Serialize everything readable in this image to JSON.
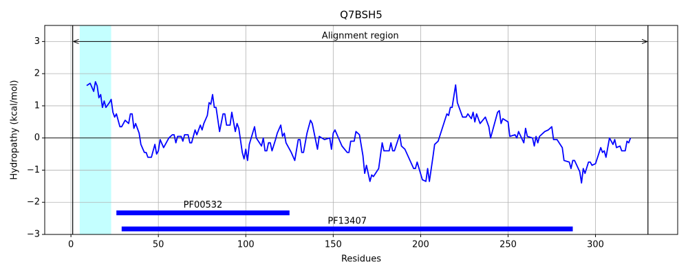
{
  "chart_data": {
    "type": "line",
    "title": "Q7BSH5",
    "x_label": "Residues",
    "y_label": "Hydropathy (kcal/mol)",
    "x": [
      9,
      11,
      13,
      14,
      15,
      16,
      17,
      18,
      19,
      20,
      22,
      23,
      24,
      25,
      26,
      28,
      29,
      31,
      33,
      34,
      35,
      36,
      37,
      39,
      40,
      42,
      43,
      44,
      46,
      48,
      49,
      50,
      51,
      53,
      56,
      58,
      59,
      60,
      61,
      63,
      64,
      65,
      67,
      68,
      69,
      71,
      72,
      74,
      75,
      76,
      78,
      79,
      80,
      81,
      82,
      83,
      85,
      87,
      88,
      89,
      91,
      92,
      94,
      95,
      96,
      98,
      99,
      100,
      101,
      102,
      105,
      106,
      109,
      110,
      111,
      112,
      113,
      114,
      115,
      117,
      118,
      120,
      121,
      122,
      123,
      126,
      128,
      130,
      131,
      132,
      133,
      135,
      137,
      138,
      141,
      142,
      145,
      148,
      149,
      150,
      151,
      153,
      155,
      158,
      159,
      160,
      162,
      163,
      165,
      167,
      168,
      169,
      171,
      172,
      173,
      176,
      178,
      179,
      182,
      183,
      184,
      185,
      188,
      189,
      191,
      196,
      197,
      198,
      201,
      203,
      204,
      205,
      207,
      208,
      210,
      215,
      216,
      217,
      218,
      220,
      221,
      224,
      226,
      227,
      229,
      230,
      231,
      232,
      234,
      237,
      239,
      240,
      244,
      245,
      246,
      247,
      250,
      251,
      254,
      255,
      256,
      259,
      260,
      261,
      264,
      265,
      266,
      267,
      268,
      271,
      273,
      275,
      276,
      278,
      281,
      282,
      285,
      286,
      287,
      288,
      291,
      292,
      293,
      294,
      296,
      297,
      298,
      300,
      303,
      304,
      305,
      306,
      308,
      310,
      311,
      312,
      314,
      315,
      317,
      318,
      319,
      320
    ],
    "values": [
      1.63,
      1.7,
      1.45,
      1.75,
      1.62,
      1.25,
      1.35,
      0.95,
      1.15,
      0.95,
      1.1,
      1.2,
      0.8,
      0.65,
      0.75,
      0.35,
      0.35,
      0.55,
      0.45,
      0.75,
      0.75,
      0.3,
      0.45,
      0.15,
      -0.2,
      -0.45,
      -0.45,
      -0.6,
      -0.6,
      -0.2,
      -0.5,
      -0.4,
      -0.05,
      -0.3,
      0,
      0.1,
      0.1,
      -0.15,
      0.05,
      0.05,
      -0.1,
      0.1,
      0.1,
      -0.15,
      -0.15,
      0.25,
      0.1,
      0.4,
      0.25,
      0.45,
      0.7,
      1.1,
      1.05,
      1.35,
      0.95,
      0.95,
      0.2,
      0.75,
      0.75,
      0.4,
      0.4,
      0.8,
      0.2,
      0.45,
      0.3,
      -0.45,
      -0.65,
      -0.35,
      -0.7,
      -0.2,
      0.35,
      0,
      -0.25,
      0,
      -0.4,
      -0.4,
      -0.15,
      -0.15,
      -0.4,
      -0.05,
      0.15,
      0.4,
      0.05,
      0.15,
      -0.15,
      -0.45,
      -0.7,
      -0.05,
      -0.05,
      -0.45,
      -0.45,
      0.15,
      0.55,
      0.45,
      -0.35,
      0.05,
      -0.05,
      0,
      -0.35,
      0.15,
      0.25,
      0,
      -0.25,
      -0.45,
      -0.45,
      -0.1,
      -0.1,
      0.2,
      0.1,
      -0.55,
      -1.1,
      -0.85,
      -1.35,
      -1.15,
      -1.2,
      -0.95,
      -0.15,
      -0.4,
      -0.4,
      -0.15,
      -0.4,
      -0.4,
      0.1,
      -0.25,
      -0.35,
      -0.95,
      -0.95,
      -0.75,
      -1.3,
      -1.35,
      -0.95,
      -1.35,
      -0.6,
      -0.2,
      -0.1,
      0.75,
      0.7,
      0.95,
      0.95,
      1.65,
      1.1,
      0.65,
      0.65,
      0.75,
      0.6,
      0.8,
      0.5,
      0.75,
      0.45,
      0.65,
      0.35,
      0,
      0.8,
      0.85,
      0.45,
      0.6,
      0.5,
      0.05,
      0.1,
      0,
      0.2,
      -0.15,
      0.3,
      0.05,
      0,
      -0.25,
      0.05,
      -0.15,
      0.05,
      0.2,
      0.25,
      0.35,
      -0.05,
      -0.05,
      -0.3,
      -0.7,
      -0.75,
      -0.95,
      -0.7,
      -0.7,
      -1.05,
      -1.4,
      -0.95,
      -1.1,
      -0.75,
      -0.75,
      -0.85,
      -0.8,
      -0.3,
      -0.45,
      -0.4,
      -0.6,
      0,
      -0.2,
      -0.05,
      -0.3,
      -0.25,
      -0.4,
      -0.4,
      -0.1,
      -0.15,
      0
    ],
    "color": "#0000ff",
    "xlim": [
      -15,
      347
    ],
    "ylim": [
      -3,
      3.5
    ],
    "xticks": [
      0,
      50,
      100,
      150,
      200,
      250,
      300
    ],
    "yticks": [
      {
        "value": -3,
        "label": "−3"
      },
      {
        "value": -2,
        "label": "−2"
      },
      {
        "value": -1,
        "label": "−1"
      },
      0,
      1,
      2,
      3
    ],
    "grid": true,
    "hline": 0,
    "span": {
      "start": 5,
      "end": 23,
      "color": "#c4ffff"
    },
    "vlines": [
      1,
      330
    ],
    "arrow": {
      "start": 1,
      "end": 330,
      "y": 3,
      "label": "Alignment region"
    },
    "domains": [
      {
        "name": "PF00532",
        "start": 26,
        "end": 125,
        "y": -2.33,
        "color": "#0000ff"
      },
      {
        "name": "PF13407",
        "start": 29,
        "end": 287,
        "y": -2.83,
        "color": "#0000ff"
      }
    ]
  }
}
